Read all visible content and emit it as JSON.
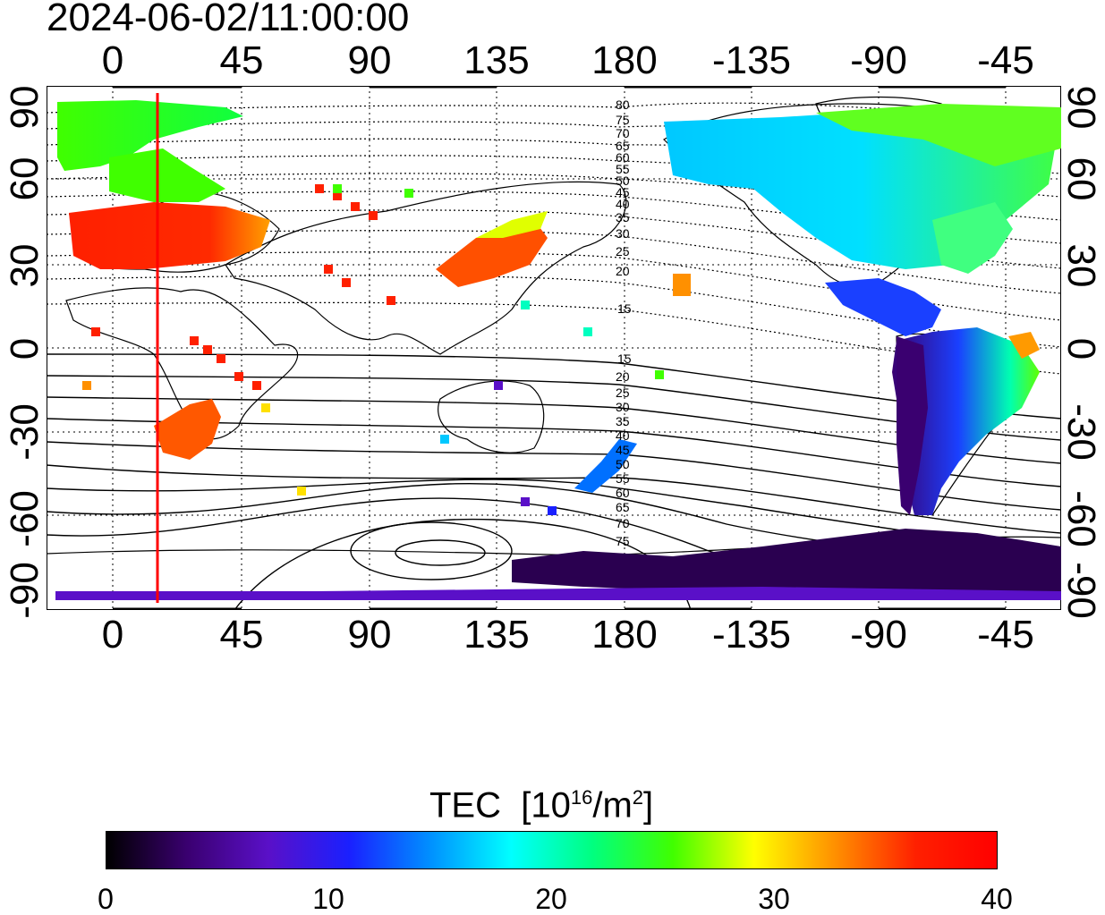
{
  "title": "2024-06-02/11:00:00",
  "top_axis_ticks": [
    "0",
    "45",
    "90",
    "135",
    "180",
    "-135",
    "-90",
    "-45"
  ],
  "bottom_axis_ticks": [
    "0",
    "45",
    "90",
    "135",
    "180",
    "-135",
    "-90",
    "-45"
  ],
  "left_axis_ticks": [
    "90",
    "60",
    "30",
    "0",
    "-30",
    "-60",
    "-90"
  ],
  "right_axis_ticks": [
    "90",
    "60",
    "30",
    "0",
    "-30",
    "-60",
    "-90"
  ],
  "contour_labels": {
    "north": [
      "80",
      "75",
      "70",
      "65",
      "60",
      "55",
      "50",
      "45",
      "40",
      "35",
      "30",
      "25",
      "20",
      "15"
    ],
    "south": [
      "15",
      "20",
      "25",
      "30",
      "35",
      "40",
      "45",
      "50",
      "55",
      "60",
      "65",
      "70",
      "75"
    ]
  },
  "colorbar": {
    "title_text": "TEC",
    "title_unit_prefix": "[10",
    "title_unit_exp": "16",
    "title_unit_mid": "/m",
    "title_unit_exp2": "2",
    "title_unit_suffix": "]",
    "min": 0,
    "max": 40,
    "ticks": [
      "0",
      "10",
      "20",
      "30",
      "40"
    ],
    "colors": [
      "#000000",
      "#3a0070",
      "#5a10c8",
      "#1a20ff",
      "#0090ff",
      "#00ffff",
      "#00ff80",
      "#40ff00",
      "#ffff00",
      "#ff9000",
      "#ff2000",
      "#ff0000"
    ]
  },
  "marker": {
    "longitude": 15,
    "color": "#ff0000"
  },
  "colors": {
    "grid": "#000000",
    "coast": "#000000",
    "background": "#ffffff"
  }
}
